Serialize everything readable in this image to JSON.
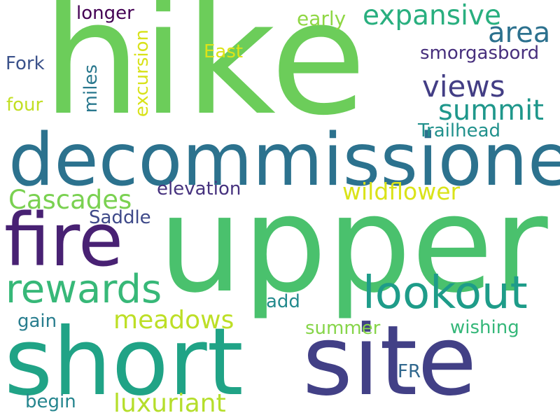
{
  "words": [
    {
      "text": "hike",
      "color": "#6ccd5a"
    },
    {
      "text": "upper",
      "color": "#4ac16d"
    },
    {
      "text": "decommissioned",
      "color": "#2c728e"
    },
    {
      "text": "short",
      "color": "#20a386"
    },
    {
      "text": "site",
      "color": "#424086"
    },
    {
      "text": "fire",
      "color": "#482173"
    },
    {
      "text": "lookout",
      "color": "#1e9c89"
    },
    {
      "text": "rewards",
      "color": "#37b878"
    },
    {
      "text": "expansive",
      "color": "#29af7f"
    },
    {
      "text": "area",
      "color": "#2c718e"
    },
    {
      "text": "views",
      "color": "#433e85"
    },
    {
      "text": "summit",
      "color": "#1f978b"
    },
    {
      "text": "Cascades",
      "color": "#7ad151"
    },
    {
      "text": "meadows",
      "color": "#bddf26"
    },
    {
      "text": "luxuriant",
      "color": "#b5de2b"
    },
    {
      "text": "wildflower",
      "color": "#dae319"
    },
    {
      "text": "longer",
      "color": "#440154"
    },
    {
      "text": "early",
      "color": "#8fd744"
    },
    {
      "text": "East",
      "color": "#dde318"
    },
    {
      "text": "smorgasbord",
      "color": "#472f7d"
    },
    {
      "text": "Fork",
      "color": "#3b528b"
    },
    {
      "text": "four",
      "color": "#c2df23"
    },
    {
      "text": "Trailhead",
      "color": "#21918c"
    },
    {
      "text": "elevation",
      "color": "#46327e"
    },
    {
      "text": "Saddle",
      "color": "#3e4989"
    },
    {
      "text": "add",
      "color": "#238a8d"
    },
    {
      "text": "gain",
      "color": "#287d8e"
    },
    {
      "text": "summer",
      "color": "#86d549"
    },
    {
      "text": "wishing",
      "color": "#35b779"
    },
    {
      "text": "FR",
      "color": "#31688e"
    },
    {
      "text": "begin",
      "color": "#25858e"
    },
    {
      "text": "miles",
      "color": "#2a788e"
    },
    {
      "text": "excursion",
      "color": "#d8e219"
    }
  ]
}
